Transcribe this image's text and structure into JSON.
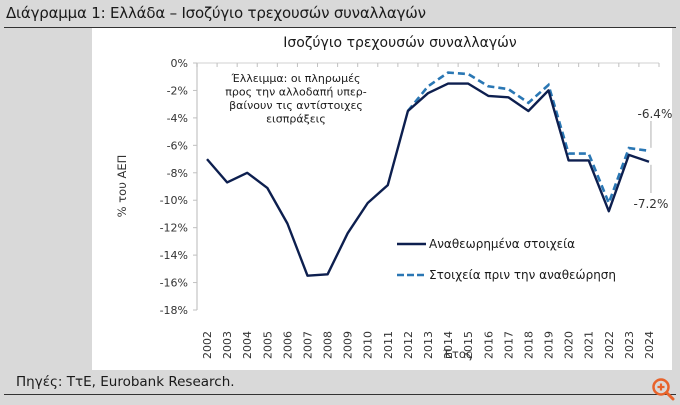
{
  "header": {
    "title": "Διάγραμμα 1: Ελλάδα – Ισοζύγιο τρεχουσών συναλλαγών"
  },
  "footer": {
    "source": "Πηγές: ΤτΕ, Eurobank Research."
  },
  "controls": {
    "zoom_icon": "zoom-in-icon",
    "zoom_color": "#e8632b"
  },
  "chart_data": {
    "type": "line",
    "title": "Ισοζύγιο τρεχουσών συναλλαγών",
    "xlabel": "Έτος",
    "ylabel": "% του ΑΕΠ",
    "ylim": [
      -18,
      0
    ],
    "yticks": [
      "0%",
      "-2%",
      "-4%",
      "-6%",
      "-8%",
      "-10%",
      "-12%",
      "-14%",
      "-16%",
      "-18%"
    ],
    "grid": false,
    "legend_position": "lower-right inside",
    "categories": [
      "2002",
      "2003",
      "2004",
      "2005",
      "2006",
      "2007",
      "2008",
      "2009",
      "2010",
      "2011",
      "2012",
      "2013",
      "2014",
      "2015",
      "2016",
      "2017",
      "2018",
      "2019",
      "2020",
      "2021",
      "2022",
      "2023",
      "2024"
    ],
    "series": [
      {
        "name": "Αναθεωρημένα στοιχεία",
        "style": "solid",
        "color": "#0d1f4f",
        "values": [
          -7.0,
          -8.7,
          -8.0,
          -9.1,
          -11.7,
          -15.5,
          -15.4,
          -12.4,
          -10.2,
          -8.9,
          -3.5,
          -2.2,
          -1.5,
          -1.5,
          -2.4,
          -2.5,
          -3.5,
          -2.0,
          -7.1,
          -7.1,
          -10.8,
          -6.7,
          -7.2
        ]
      },
      {
        "name": "Στοιχεία πριν την αναθεώρηση",
        "style": "dashed",
        "color": "#2a77b4",
        "values": [
          null,
          null,
          null,
          null,
          null,
          null,
          null,
          null,
          null,
          null,
          -3.5,
          -1.7,
          -0.7,
          -0.8,
          -1.7,
          -1.9,
          -2.9,
          -1.6,
          -6.6,
          -6.6,
          -10.2,
          -6.2,
          -6.4
        ]
      }
    ],
    "annotations": [
      {
        "text_lines": [
          "Έλλειμμα: οι πληρωμές",
          "προς την αλλοδαπή υπερ-",
          "βαίνουν τις αντίστοιχες",
          "εισπράξεις"
        ]
      },
      {
        "text": "-6.4%",
        "target": "Στοιχεία πριν την αναθεώρηση 2024"
      },
      {
        "text": "-7.2%",
        "target": "Αναθεωρημένα στοιχεία 2024"
      }
    ]
  }
}
